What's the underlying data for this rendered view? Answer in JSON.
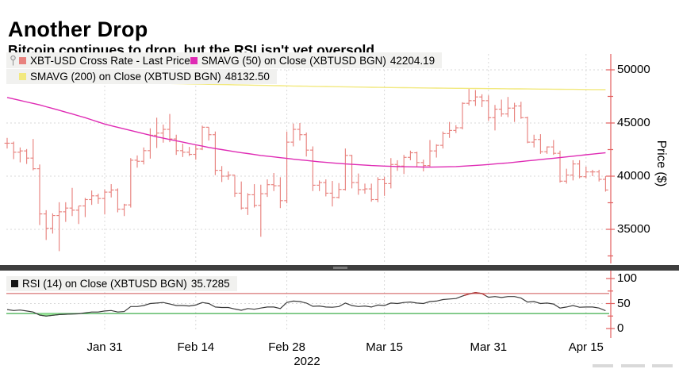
{
  "header": {
    "title": "Another Drop",
    "subtitle": "Bitcoin continues to drop, but the RSI isn't yet oversold"
  },
  "legend": {
    "item1": {
      "label": "XBT-USD Cross Rate - Last Price",
      "color": "#e8827e"
    },
    "item2": {
      "label": "SMAVG (50)  on Close (XBTUSD BGN)",
      "value": "42204.19",
      "color": "#df2bb4"
    },
    "item3": {
      "label": "SMAVG (200)  on Close (XBTUSD BGN)",
      "value": "48132.50",
      "color": "#f2e97f"
    },
    "rsi": {
      "label": "RSI (14)  on Close (XBTUSD BGN)",
      "value": "35.7285",
      "color": "#141414"
    }
  },
  "axes": {
    "price": {
      "label": "Price ($)",
      "ticks": [
        {
          "label": "50000",
          "value": 50000
        },
        {
          "label": "45000",
          "value": 45000
        },
        {
          "label": "40000",
          "value": 40000
        },
        {
          "label": "35000",
          "value": 35000
        }
      ],
      "minor_ticks": [
        47500,
        42500,
        37500,
        32500
      ]
    },
    "rsi": {
      "ticks": [
        {
          "label": "100",
          "value": 100
        },
        {
          "label": "50",
          "value": 50
        },
        {
          "label": "0",
          "value": 0
        }
      ],
      "minor_ticks": [
        75,
        25
      ]
    },
    "x": {
      "labels": [
        "Jan 31",
        "Feb 14",
        "Feb 28",
        "Mar 15",
        "Mar 31",
        "Apr 15"
      ],
      "indices": [
        15,
        29,
        43,
        58,
        74,
        89
      ],
      "year": "2022"
    }
  },
  "chart_data": [
    {
      "type": "ohlc-bar",
      "title": "XBT-USD Cross Rate - Last Price",
      "ylabel": "Price ($)",
      "ylim": [
        31800,
        51500
      ],
      "x_unit": "day",
      "date_range": [
        "2022-01-16",
        "2022-04-18"
      ],
      "bar_color": "#e8827e",
      "bars": [
        [
          "2022-01-16",
          43100,
          43600,
          42600,
          43100
        ],
        [
          "2022-01-17",
          43100,
          43250,
          41600,
          42250
        ],
        [
          "2022-01-18",
          42250,
          42700,
          41300,
          42375
        ],
        [
          "2022-01-19",
          42375,
          42550,
          41150,
          41700
        ],
        [
          "2022-01-20",
          41700,
          43500,
          40550,
          40700
        ],
        [
          "2022-01-21",
          40700,
          41100,
          35400,
          36450
        ],
        [
          "2022-01-22",
          36450,
          36800,
          34000,
          35100
        ],
        [
          "2022-01-23",
          35100,
          36500,
          34600,
          36300
        ],
        [
          "2022-01-24",
          36300,
          37550,
          32950,
          36650
        ],
        [
          "2022-01-25",
          36650,
          37550,
          35700,
          37000
        ],
        [
          "2022-01-26",
          37000,
          38900,
          36250,
          36800
        ],
        [
          "2022-01-27",
          36800,
          37200,
          35500,
          37200
        ],
        [
          "2022-01-28",
          37200,
          37950,
          36150,
          37800
        ],
        [
          "2022-01-29",
          37800,
          38650,
          37300,
          38150
        ],
        [
          "2022-01-30",
          38150,
          38350,
          37400,
          37900
        ],
        [
          "2022-01-31",
          37900,
          38750,
          36400,
          38500
        ],
        [
          "2022-02-01",
          38500,
          39250,
          38000,
          38700
        ],
        [
          "2022-02-02",
          38700,
          38850,
          36600,
          36900
        ],
        [
          "2022-02-03",
          36900,
          37400,
          36250,
          37300
        ],
        [
          "2022-02-04",
          37300,
          41700,
          37050,
          41500
        ],
        [
          "2022-02-05",
          41500,
          41950,
          40800,
          41400
        ],
        [
          "2022-02-06",
          41400,
          42700,
          41100,
          42400
        ],
        [
          "2022-02-07",
          42400,
          44500,
          41650,
          43850
        ],
        [
          "2022-02-08",
          43850,
          45500,
          42650,
          44050
        ],
        [
          "2022-02-09",
          44050,
          44850,
          43150,
          44400
        ],
        [
          "2022-02-10",
          44400,
          45850,
          43200,
          43500
        ],
        [
          "2022-02-11",
          43500,
          43900,
          42000,
          42400
        ],
        [
          "2022-02-12",
          42400,
          43050,
          41800,
          42250
        ],
        [
          "2022-02-13",
          42250,
          42750,
          41900,
          42050
        ],
        [
          "2022-02-14",
          42050,
          42900,
          41550,
          42550
        ],
        [
          "2022-02-15",
          42550,
          44750,
          42450,
          44600
        ],
        [
          "2022-02-16",
          44600,
          44600,
          43350,
          43900
        ],
        [
          "2022-02-17",
          43900,
          44200,
          40100,
          40550
        ],
        [
          "2022-02-18",
          40550,
          40950,
          39450,
          40000
        ],
        [
          "2022-02-19",
          40000,
          40450,
          39650,
          40100
        ],
        [
          "2022-02-20",
          40100,
          40100,
          38050,
          38400
        ],
        [
          "2022-02-21",
          38400,
          39500,
          36850,
          37000
        ],
        [
          "2022-02-22",
          37000,
          38400,
          36350,
          38250
        ],
        [
          "2022-02-23",
          38250,
          39250,
          37050,
          37250
        ],
        [
          "2022-02-24",
          37250,
          39200,
          34300,
          38350
        ],
        [
          "2022-02-25",
          38350,
          39700,
          38050,
          39200
        ],
        [
          "2022-02-26",
          39200,
          40300,
          38600,
          39100
        ],
        [
          "2022-02-27",
          39100,
          39900,
          37000,
          37700
        ],
        [
          "2022-02-28",
          37700,
          44200,
          37450,
          43200
        ],
        [
          "2022-03-01",
          43200,
          44950,
          42800,
          44400
        ],
        [
          "2022-03-02",
          44400,
          45000,
          43350,
          43900
        ],
        [
          "2022-03-03",
          43900,
          44100,
          41850,
          42450
        ],
        [
          "2022-03-04",
          42450,
          42800,
          38600,
          39150
        ],
        [
          "2022-03-05",
          39150,
          39600,
          38600,
          39400
        ],
        [
          "2022-03-06",
          39400,
          39700,
          38100,
          38400
        ],
        [
          "2022-03-07",
          38400,
          39550,
          37150,
          38000
        ],
        [
          "2022-03-08",
          38000,
          39350,
          37900,
          38750
        ],
        [
          "2022-03-09",
          38750,
          42600,
          38650,
          41950
        ],
        [
          "2022-03-10",
          41950,
          42000,
          38850,
          39400
        ],
        [
          "2022-03-11",
          39400,
          40250,
          38250,
          38730
        ],
        [
          "2022-03-12",
          38730,
          39300,
          38350,
          38800
        ],
        [
          "2022-03-13",
          38800,
          39300,
          37600,
          37800
        ],
        [
          "2022-03-14",
          37800,
          39900,
          37550,
          39670
        ],
        [
          "2022-03-15",
          39670,
          39950,
          38150,
          39300
        ],
        [
          "2022-03-16",
          39300,
          41700,
          38850,
          41100
        ],
        [
          "2022-03-17",
          41100,
          41500,
          40500,
          40950
        ],
        [
          "2022-03-18",
          40950,
          42000,
          40200,
          41770
        ],
        [
          "2022-03-19",
          41770,
          42400,
          41500,
          42200
        ],
        [
          "2022-03-20",
          42200,
          42300,
          40900,
          41280
        ],
        [
          "2022-03-21",
          41280,
          41550,
          40450,
          41000
        ],
        [
          "2022-03-22",
          41000,
          43400,
          40900,
          42375
        ],
        [
          "2022-03-23",
          42375,
          43000,
          41750,
          42900
        ],
        [
          "2022-03-24",
          42900,
          44200,
          42600,
          44000
        ],
        [
          "2022-03-25",
          44000,
          45100,
          43600,
          44300
        ],
        [
          "2022-03-26",
          44300,
          44800,
          44050,
          44550
        ],
        [
          "2022-03-27",
          44550,
          46950,
          44400,
          46850
        ],
        [
          "2022-03-28",
          46850,
          48200,
          46650,
          47100
        ],
        [
          "2022-03-29",
          47100,
          48100,
          46600,
          47450
        ],
        [
          "2022-03-30",
          47450,
          47700,
          46500,
          47100
        ],
        [
          "2022-03-31",
          47100,
          47600,
          45200,
          45500
        ],
        [
          "2022-04-01",
          45500,
          46700,
          44300,
          46300
        ],
        [
          "2022-04-02",
          46300,
          47200,
          45600,
          45850
        ],
        [
          "2022-04-03",
          45850,
          47450,
          45550,
          46400
        ],
        [
          "2022-04-04",
          46400,
          46900,
          45100,
          46600
        ],
        [
          "2022-04-05",
          46600,
          47000,
          45400,
          45500
        ],
        [
          "2022-04-06",
          45500,
          45600,
          43100,
          43200
        ],
        [
          "2022-04-07",
          43200,
          43900,
          42700,
          43450
        ],
        [
          "2022-04-08",
          43450,
          43950,
          42100,
          42300
        ],
        [
          "2022-04-09",
          42300,
          42800,
          42100,
          42750
        ],
        [
          "2022-04-10",
          42750,
          43400,
          42000,
          42150
        ],
        [
          "2022-04-11",
          42150,
          42400,
          39400,
          39530
        ],
        [
          "2022-04-12",
          39530,
          40700,
          39300,
          40100
        ],
        [
          "2022-04-13",
          40100,
          41500,
          39600,
          41150
        ],
        [
          "2022-04-14",
          41150,
          41500,
          39800,
          39950
        ],
        [
          "2022-04-15",
          39950,
          40900,
          39800,
          40400
        ],
        [
          "2022-04-16",
          40400,
          40600,
          40000,
          40400
        ],
        [
          "2022-04-17",
          40400,
          40600,
          39500,
          39700
        ],
        [
          "2022-04-18",
          39700,
          40000,
          38550,
          38700
        ]
      ],
      "series": [
        {
          "name": "SMAVG (50) on Close (XBTUSD BGN)",
          "last": 42204.19,
          "color": "#df2bb4",
          "keypoints": [
            [
              0,
              47400
            ],
            [
              5,
              46700
            ],
            [
              8,
              46200
            ],
            [
              12,
              45500
            ],
            [
              15,
              44900
            ],
            [
              19,
              44300
            ],
            [
              23,
              43700
            ],
            [
              27,
              43200
            ],
            [
              31,
              42700
            ],
            [
              35,
              42300
            ],
            [
              39,
              41950
            ],
            [
              44,
              41600
            ],
            [
              48,
              41350
            ],
            [
              52,
              41150
            ],
            [
              56,
              41000
            ],
            [
              60,
              40900
            ],
            [
              65,
              40850
            ],
            [
              69,
              40900
            ],
            [
              73,
              41050
            ],
            [
              77,
              41250
            ],
            [
              81,
              41500
            ],
            [
              85,
              41750
            ],
            [
              88,
              41950
            ],
            [
              92,
              42204
            ]
          ]
        },
        {
          "name": "SMAVG (200) on Close (XBTUSD BGN)",
          "last": 48132.5,
          "color": "#f2e97f",
          "keypoints": [
            [
              0,
              49000
            ],
            [
              16,
              48820
            ],
            [
              30,
              48650
            ],
            [
              44,
              48480
            ],
            [
              58,
              48340
            ],
            [
              68,
              48270
            ],
            [
              80,
              48200
            ],
            [
              92,
              48133
            ]
          ]
        }
      ]
    },
    {
      "type": "line",
      "title": "RSI (14) on Close (XBTUSD BGN)",
      "last": 35.7285,
      "ylim": [
        0,
        100
      ],
      "overbought": 70,
      "oversold": 30,
      "line_color": "#3c3c3c",
      "overbought_color": "#cf5454",
      "oversold_color": "#3fae4c",
      "values": [
        38,
        36,
        37,
        35,
        33,
        27,
        25,
        26.5,
        28,
        28.5,
        29,
        29.5,
        31.5,
        33,
        33,
        35,
        36,
        33,
        34,
        44,
        44,
        46,
        50,
        51,
        52,
        49,
        46,
        46,
        45,
        47,
        52,
        50,
        43,
        42,
        42,
        39,
        36.5,
        40,
        38.5,
        41,
        43,
        43,
        40,
        52,
        55,
        54,
        51,
        44.5,
        45,
        43,
        42.5,
        44,
        51,
        46,
        44,
        45,
        43,
        47,
        46,
        51,
        50,
        52,
        53,
        51,
        50,
        54,
        55,
        58,
        59,
        60,
        65,
        69,
        72,
        70,
        62.5,
        64,
        62,
        64,
        64,
        61,
        53,
        54,
        50,
        51,
        49,
        41,
        43,
        46,
        42.5,
        43,
        43,
        41,
        35.7285
      ]
    }
  ]
}
